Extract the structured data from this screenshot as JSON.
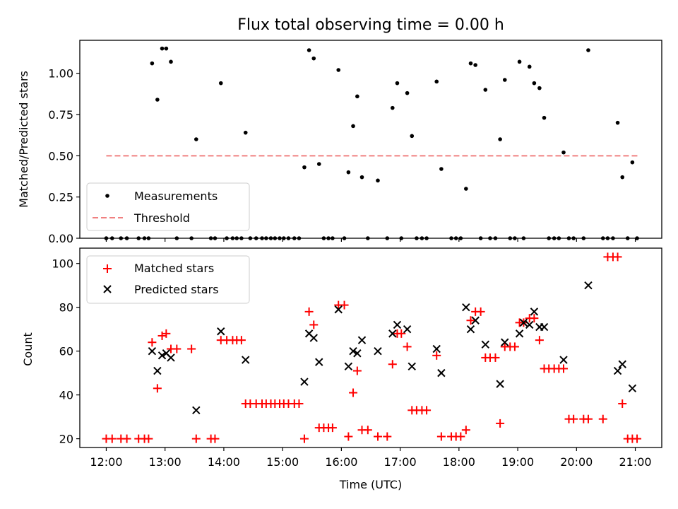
{
  "chart_data": [
    {
      "type": "scatter",
      "title": "Flux total observing time = 0.00 h",
      "xlabel": "",
      "ylabel": "Matched/Predicted stars",
      "xlim": [
        11.55,
        21.45
      ],
      "ylim": [
        0,
        1.2
      ],
      "yticks": [
        0,
        0.25,
        0.5,
        0.75,
        1.0
      ],
      "yticklabels": [
        "0.00",
        "0.25",
        "0.50",
        "0.75",
        "1.00"
      ],
      "legend": {
        "position": "lower-left",
        "entries": [
          "Measurements",
          "Threshold"
        ]
      },
      "colors": {
        "measurements": "#000000",
        "threshold": "#f08080"
      },
      "series": [
        {
          "name": "Measurements",
          "marker": "dot",
          "x": [
            12.0,
            12.1,
            12.25,
            12.35,
            12.55,
            12.65,
            12.72,
            12.78,
            12.87,
            12.95,
            13.02,
            13.1,
            13.2,
            13.45,
            13.53,
            13.78,
            13.85,
            13.95,
            14.05,
            14.15,
            14.22,
            14.3,
            14.37,
            14.45,
            14.55,
            14.65,
            14.72,
            14.8,
            14.87,
            14.95,
            15.02,
            15.1,
            15.2,
            15.28,
            15.37,
            15.45,
            15.53,
            15.62,
            15.7,
            15.78,
            15.85,
            15.95,
            16.05,
            16.12,
            16.2,
            16.27,
            16.35,
            16.45,
            16.62,
            16.78,
            16.87,
            16.95,
            17.02,
            17.12,
            17.2,
            17.28,
            17.37,
            17.45,
            17.62,
            17.7,
            17.87,
            17.95,
            18.03,
            18.12,
            18.2,
            18.28,
            18.37,
            18.45,
            18.53,
            18.62,
            18.7,
            18.78,
            18.87,
            18.95,
            19.03,
            19.1,
            19.2,
            19.28,
            19.37,
            19.45,
            19.53,
            19.62,
            19.7,
            19.78,
            19.87,
            19.95,
            20.12,
            20.2,
            20.45,
            20.53,
            20.62,
            20.7,
            20.78,
            20.87,
            20.95,
            21.03
          ],
          "y": [
            0,
            0,
            0,
            0,
            0,
            0,
            0,
            1.06,
            0.84,
            1.15,
            1.15,
            1.07,
            0,
            0,
            0.6,
            0,
            0,
            0.94,
            0,
            0,
            0,
            0,
            0.64,
            0,
            0,
            0,
            0,
            0,
            0,
            0,
            0,
            0,
            0,
            0,
            0.43,
            1.14,
            1.09,
            0.45,
            0,
            0,
            0,
            1.02,
            0,
            0.4,
            0.68,
            0.86,
            0.37,
            0,
            0.35,
            0,
            0.79,
            0.94,
            0,
            0.88,
            0.62,
            0,
            0,
            0,
            0.95,
            0.42,
            0,
            0,
            0,
            0.3,
            1.06,
            1.05,
            0,
            0.9,
            0,
            0,
            0.6,
            0.96,
            0,
            0,
            1.07,
            0,
            1.04,
            0.94,
            0.91,
            0.73,
            0,
            0,
            0,
            0.52,
            0,
            0,
            0,
            1.14,
            0,
            0,
            0,
            0.7,
            0.37,
            0,
            0.46,
            0
          ]
        },
        {
          "name": "Threshold",
          "style": "dashed",
          "x": [
            12.0,
            21.05
          ],
          "y": [
            0.5,
            0.5
          ]
        }
      ]
    },
    {
      "type": "scatter",
      "title": "",
      "xlabel": "Time (UTC)",
      "ylabel": "Count",
      "xlim": [
        11.55,
        21.45
      ],
      "ylim": [
        16,
        107
      ],
      "yticks": [
        20,
        40,
        60,
        80,
        100
      ],
      "yticklabels": [
        "20",
        "40",
        "60",
        "80",
        "100"
      ],
      "xticks": [
        12,
        13,
        14,
        15,
        16,
        17,
        18,
        19,
        20,
        21
      ],
      "xticklabels": [
        "12:00",
        "13:00",
        "14:00",
        "15:00",
        "16:00",
        "17:00",
        "18:00",
        "19:00",
        "20:00",
        "21:00"
      ],
      "legend": {
        "position": "top-left",
        "entries": [
          "Matched stars",
          "Predicted stars"
        ]
      },
      "colors": {
        "matched": "#ff0000",
        "predicted": "#000000"
      },
      "series": [
        {
          "name": "Matched stars",
          "marker": "plus",
          "x": [
            12.0,
            12.1,
            12.25,
            12.35,
            12.55,
            12.65,
            12.72,
            12.78,
            12.87,
            12.95,
            13.02,
            13.1,
            13.2,
            13.45,
            13.53,
            13.78,
            13.85,
            13.95,
            14.05,
            14.15,
            14.22,
            14.3,
            14.37,
            14.45,
            14.55,
            14.65,
            14.72,
            14.8,
            14.87,
            14.95,
            15.02,
            15.1,
            15.2,
            15.28,
            15.37,
            15.45,
            15.53,
            15.62,
            15.7,
            15.78,
            15.85,
            15.95,
            16.05,
            16.12,
            16.2,
            16.27,
            16.35,
            16.45,
            16.62,
            16.78,
            16.87,
            16.95,
            17.02,
            17.12,
            17.2,
            17.28,
            17.37,
            17.45,
            17.62,
            17.7,
            17.87,
            17.95,
            18.03,
            18.12,
            18.2,
            18.28,
            18.37,
            18.45,
            18.53,
            18.62,
            18.7,
            18.78,
            18.87,
            18.95,
            19.03,
            19.1,
            19.2,
            19.28,
            19.37,
            19.45,
            19.53,
            19.62,
            19.7,
            19.78,
            19.87,
            19.95,
            20.12,
            20.2,
            20.45,
            20.53,
            20.62,
            20.7,
            20.78,
            20.87,
            20.95,
            21.03
          ],
          "y": [
            20,
            20,
            20,
            20,
            20,
            20,
            20,
            64,
            43,
            67,
            68,
            61,
            61,
            61,
            20,
            20,
            20,
            65,
            65,
            65,
            65,
            65,
            36,
            36,
            36,
            36,
            36,
            36,
            36,
            36,
            36,
            36,
            36,
            36,
            20,
            78,
            72,
            25,
            25,
            25,
            25,
            81,
            81,
            21,
            41,
            51,
            24,
            24,
            21,
            21,
            54,
            68,
            68,
            62,
            33,
            33,
            33,
            33,
            58,
            21,
            21,
            21,
            21,
            24,
            74,
            78,
            78,
            57,
            57,
            57,
            27,
            62,
            62,
            62,
            73,
            73,
            75,
            75,
            65,
            52,
            52,
            52,
            52,
            52,
            29,
            29,
            29,
            29,
            29,
            103,
            103,
            103,
            36,
            20,
            20,
            20
          ]
        },
        {
          "name": "Predicted stars",
          "marker": "x",
          "x": [
            12.78,
            12.87,
            12.95,
            13.02,
            13.1,
            13.53,
            13.95,
            14.37,
            15.37,
            15.45,
            15.53,
            15.62,
            15.95,
            16.12,
            16.2,
            16.27,
            16.35,
            16.62,
            16.87,
            16.95,
            17.12,
            17.2,
            17.62,
            17.7,
            18.12,
            18.2,
            18.28,
            18.45,
            18.7,
            18.78,
            19.03,
            19.1,
            19.2,
            19.28,
            19.37,
            19.45,
            19.78,
            20.2,
            20.7,
            20.78,
            20.95
          ],
          "y": [
            60,
            51,
            58,
            59,
            57,
            33,
            69,
            56,
            46,
            68,
            66,
            55,
            79,
            53,
            60,
            59,
            65,
            60,
            68,
            72,
            70,
            53,
            61,
            50,
            80,
            70,
            74,
            63,
            45,
            64,
            68,
            73,
            72,
            78,
            71,
            71,
            56,
            90,
            51,
            54,
            43
          ]
        }
      ]
    }
  ]
}
